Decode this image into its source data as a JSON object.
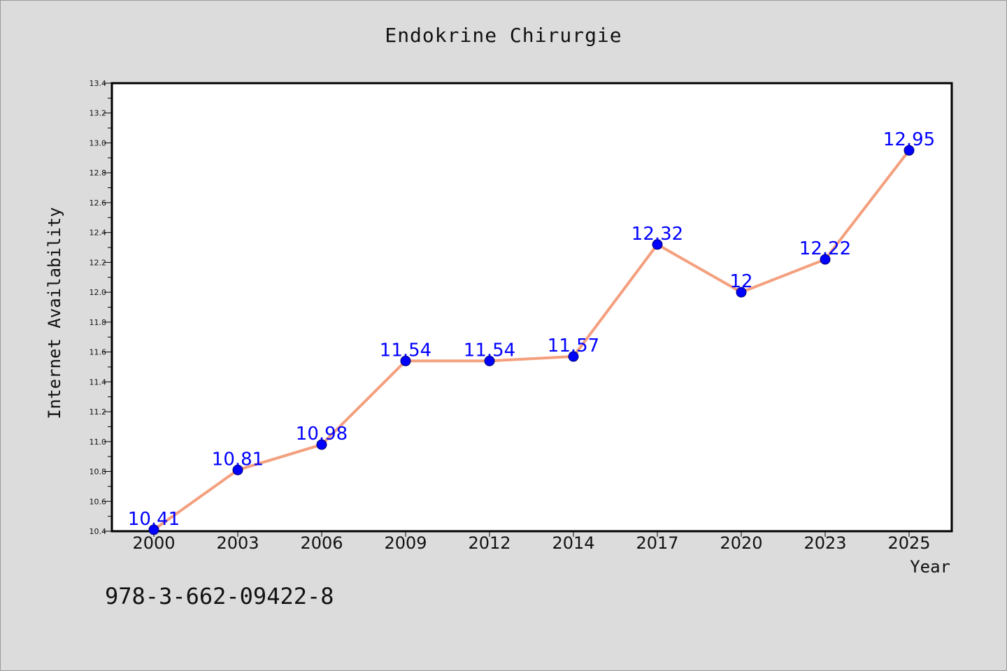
{
  "chart_data": {
    "type": "line",
    "title": "Endokrine Chirurgie",
    "xlabel": "Year",
    "ylabel": "Internet Availability",
    "categories": [
      "2000",
      "2003",
      "2006",
      "2009",
      "2012",
      "2014",
      "2017",
      "2020",
      "2023",
      "2025"
    ],
    "series": [
      {
        "values": [
          10.41,
          10.81,
          10.98,
          11.54,
          11.54,
          11.57,
          12.32,
          12.0,
          12.22,
          12.95
        ],
        "labels": [
          "10.41",
          "10.81",
          "10.98",
          "11.54",
          "11.54",
          "11.57",
          "12.32",
          "12",
          "12.22",
          "12.95"
        ]
      }
    ],
    "ylim": [
      10.4,
      13.4
    ],
    "yticks": [
      "10.4",
      "10.6",
      "10.8",
      "11.0",
      "11.2",
      "11.4",
      "11.6",
      "11.8",
      "12.0",
      "12.2",
      "12.4",
      "12.6",
      "12.8",
      "13.0",
      "13.2",
      "13.4"
    ],
    "grid": false,
    "colors": {
      "line": "#f4a07f",
      "marker": "#0000ff",
      "data_label": "#0000ff",
      "background": "#dcdcdc",
      "plot_area": "#ffffff"
    }
  },
  "footer": {
    "isbn": "978-3-662-09422-8"
  }
}
